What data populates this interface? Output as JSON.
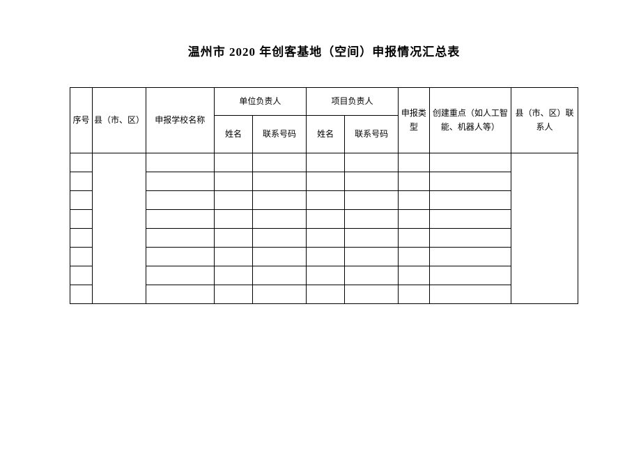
{
  "title": "温州市 2020 年创客基地（空间）申报情况汇总表",
  "table": {
    "headers": {
      "seq": "序号",
      "county": "县（市、区）",
      "school": "申报学校名称",
      "unit_leader": "单位负责人",
      "project_leader": "项目负责人",
      "name": "姓名",
      "phone": "联系号码",
      "apply_type": "申报类型",
      "focus": "创建重点（如人工智能、机器人等）",
      "contact": "县（市、区）联系人"
    },
    "row_count": 8,
    "columns": {
      "seq_width": 30,
      "county_width": 72,
      "school_width": 92,
      "name_width": 52,
      "phone_width": 72,
      "type_width": 42,
      "focus_width": 110,
      "contact_width": 90
    },
    "colors": {
      "border": "#000000",
      "background": "#ffffff",
      "text": "#000000"
    },
    "typography": {
      "title_fontsize": 17,
      "title_fontweight": "bold",
      "cell_fontsize": 12
    }
  }
}
